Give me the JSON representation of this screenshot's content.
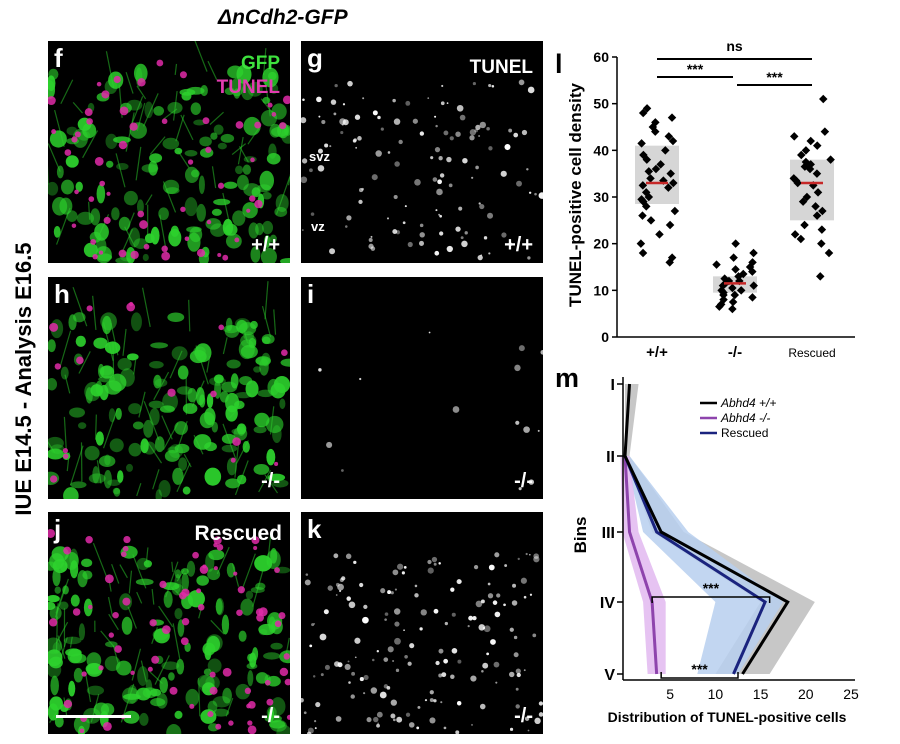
{
  "figure_title": "ΔnCdh2-GFP",
  "side_label": "IUE E14.5 - Analysis E16.5",
  "panels": {
    "f": {
      "letter": "f",
      "legend_gfp": "GFP",
      "legend_tunel": "TUNEL",
      "genotype": "+/+"
    },
    "g": {
      "letter": "g",
      "channel": "TUNEL",
      "genotype": "+/+",
      "svz": "svz",
      "vz": "vz"
    },
    "h": {
      "letter": "h",
      "genotype": "-/-"
    },
    "i": {
      "letter": "i",
      "genotype": "-/-"
    },
    "j": {
      "letter": "j",
      "title": "Rescued",
      "genotype": "-/-"
    },
    "k": {
      "letter": "k",
      "genotype": "-/-"
    }
  },
  "colors": {
    "gfp": "#2dd22d",
    "tunel": "#e02aa8",
    "median": "#c62828",
    "wt": "#000000",
    "ko": "#8e44ad",
    "rescued": "#1a237e"
  },
  "chart_data": [
    {
      "panel": "l",
      "type": "scatter",
      "ylabel": "TUNEL-positive cell density",
      "ylim": [
        0,
        60
      ],
      "yticks": [
        0,
        10,
        20,
        30,
        40,
        50,
        60
      ],
      "categories": [
        "+/+",
        "-/-",
        "Rescued"
      ],
      "groups": [
        {
          "name": "+/+",
          "median": 33,
          "box": [
            28.5,
            41
          ],
          "values": [
            49,
            48,
            47,
            46,
            45,
            44,
            43,
            42,
            41.5,
            40,
            39,
            38,
            37,
            36,
            35.5,
            35,
            34,
            33.5,
            33,
            32.5,
            32,
            31,
            30,
            29.5,
            29,
            28,
            27,
            26,
            25,
            24,
            22,
            20,
            18,
            17,
            16
          ]
        },
        {
          "name": "-/-",
          "median": 11.5,
          "box": [
            9.5,
            13
          ],
          "values": [
            20,
            18,
            17,
            16,
            15.5,
            15,
            14.5,
            14,
            13.5,
            13,
            12.5,
            12,
            12,
            11.5,
            11,
            11,
            10.5,
            10,
            10,
            9.5,
            9,
            9,
            8.5,
            8,
            7.5,
            7,
            6.5,
            6
          ]
        },
        {
          "name": "Rescued",
          "median": 33,
          "box": [
            25,
            38
          ],
          "values": [
            51,
            44,
            43,
            42,
            41,
            40,
            39,
            38,
            37.5,
            37,
            36.5,
            36,
            35,
            34,
            33.5,
            33,
            32.5,
            31,
            30,
            29,
            28,
            27,
            26,
            24,
            23,
            22,
            21,
            20,
            18,
            13
          ]
        }
      ],
      "significance": [
        {
          "from": "+/+",
          "to": "Rescued",
          "label": "ns"
        },
        {
          "from": "+/+",
          "to": "-/-",
          "label": "***"
        },
        {
          "from": "-/-",
          "to": "Rescued",
          "label": "***"
        }
      ]
    },
    {
      "panel": "m",
      "type": "line",
      "xlabel": "Distribution of TUNEL-positive cells",
      "ylabel": "Bins",
      "xlim": [
        0,
        25
      ],
      "xticks": [
        5,
        10,
        15,
        20,
        25
      ],
      "bins": [
        "I",
        "II",
        "III",
        "IV",
        "V"
      ],
      "series": [
        {
          "name": "Abhd4 +/+",
          "values": [
            0.5,
            0,
            4,
            18,
            13
          ],
          "band": [
            [
              0,
              1.5
            ],
            [
              0,
              0.5
            ],
            [
              3,
              6.5
            ],
            [
              15,
              21
            ],
            [
              10,
              16
            ]
          ]
        },
        {
          "name": "Abhd4 -/-",
          "values": [
            null,
            0,
            0.5,
            3,
            3.5
          ],
          "band": [
            [
              null,
              null
            ],
            [
              -0.5,
              0.5
            ],
            [
              -0.3,
              1.5
            ],
            [
              2,
              4.5
            ],
            [
              2.5,
              4.5
            ]
          ]
        },
        {
          "name": "Rescued",
          "values": [
            null,
            0,
            3.5,
            15.5,
            12
          ],
          "band": [
            [
              null,
              null
            ],
            [
              0,
              0.5
            ],
            [
              2,
              7
            ],
            [
              10,
              17.5
            ],
            [
              8,
              12.5
            ]
          ]
        }
      ],
      "significance": [
        {
          "bin": "IV",
          "from": 3,
          "to": 16,
          "label": "***"
        },
        {
          "bin": "V",
          "from": 4,
          "to": 12.5,
          "label": "***"
        }
      ]
    }
  ]
}
